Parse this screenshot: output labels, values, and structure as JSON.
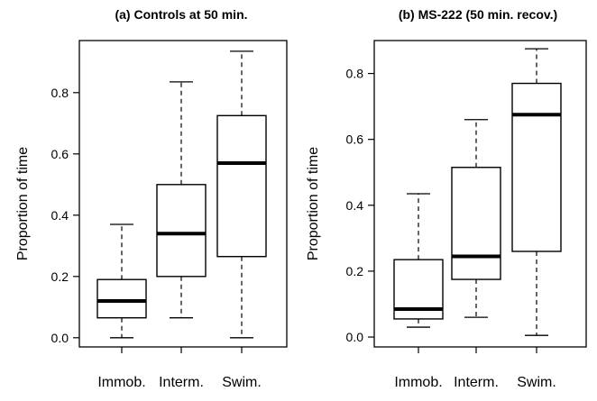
{
  "chart_data": [
    {
      "type": "boxplot",
      "title": "(a) Controls at 50 min.",
      "ylabel": "Proportion of time",
      "xlabel": "",
      "ylim": [
        -0.03,
        0.97
      ],
      "yticks": [
        "0.0",
        "0.2",
        "0.4",
        "0.6",
        "0.8"
      ],
      "categories": [
        "Immob.",
        "Interm.",
        "Swim."
      ],
      "boxes": [
        {
          "category": "Immob.",
          "min": 0.0,
          "q1": 0.065,
          "median": 0.12,
          "q3": 0.19,
          "max": 0.37
        },
        {
          "category": "Interm.",
          "min": 0.065,
          "q1": 0.2,
          "median": 0.34,
          "q3": 0.5,
          "max": 0.835
        },
        {
          "category": "Swim.",
          "min": 0.0,
          "q1": 0.265,
          "median": 0.57,
          "q3": 0.725,
          "max": 0.935
        }
      ]
    },
    {
      "type": "boxplot",
      "title": "(b) MS-222 (50 min. recov.)",
      "ylabel": "Proportion of time",
      "xlabel": "",
      "ylim": [
        -0.03,
        0.9
      ],
      "yticks": [
        "0.0",
        "0.2",
        "0.4",
        "0.6",
        "0.8"
      ],
      "categories": [
        "Immob.",
        "Interm.",
        "Swim."
      ],
      "boxes": [
        {
          "category": "Immob.",
          "min": 0.03,
          "q1": 0.055,
          "median": 0.085,
          "q3": 0.235,
          "max": 0.435
        },
        {
          "category": "Interm.",
          "min": 0.06,
          "q1": 0.175,
          "median": 0.245,
          "q3": 0.515,
          "max": 0.66
        },
        {
          "category": "Swim.",
          "min": 0.005,
          "q1": 0.26,
          "median": 0.675,
          "q3": 0.77,
          "max": 0.875
        }
      ]
    }
  ]
}
